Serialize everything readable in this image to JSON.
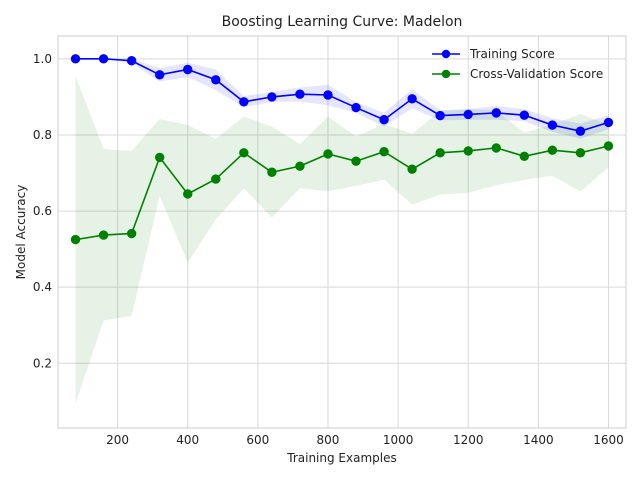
{
  "chart_data": {
    "type": "line",
    "title": "Boosting Learning Curve: Madelon",
    "xlabel": "Training Examples",
    "ylabel": "Model Accuracy",
    "xlim": [
      30,
      1650
    ],
    "ylim": [
      0.03,
      1.06
    ],
    "xticks": [
      200,
      400,
      600,
      800,
      1000,
      1200,
      1400,
      1600
    ],
    "yticks": [
      0.2,
      0.4,
      0.6,
      0.8,
      1.0
    ],
    "grid": true,
    "legend_position": "top-right",
    "x": [
      80,
      160,
      240,
      320,
      400,
      480,
      560,
      640,
      720,
      800,
      880,
      960,
      1040,
      1120,
      1200,
      1280,
      1360,
      1440,
      1520,
      1600
    ],
    "series": [
      {
        "name": "Training Score",
        "color": "#0000ff",
        "values": [
          1.0,
          1.0,
          0.995,
          0.958,
          0.972,
          0.945,
          0.887,
          0.9,
          0.907,
          0.905,
          0.872,
          0.84,
          0.895,
          0.851,
          0.854,
          0.858,
          0.852,
          0.826,
          0.81,
          0.833
        ],
        "band_lower": [
          1.0,
          1.0,
          0.99,
          0.94,
          0.952,
          0.918,
          0.872,
          0.887,
          0.888,
          0.878,
          0.858,
          0.822,
          0.87,
          0.838,
          0.84,
          0.84,
          0.836,
          0.808,
          0.79,
          0.815
        ],
        "band_upper": [
          1.0,
          1.0,
          1.0,
          0.975,
          0.99,
          0.972,
          0.902,
          0.913,
          0.925,
          0.932,
          0.886,
          0.858,
          0.92,
          0.865,
          0.868,
          0.876,
          0.868,
          0.844,
          0.83,
          0.851
        ],
        "band_color": "#0000ff"
      },
      {
        "name": "Cross-Validation Score",
        "color": "#008000",
        "values": [
          0.525,
          0.537,
          0.541,
          0.741,
          0.645,
          0.684,
          0.753,
          0.702,
          0.718,
          0.75,
          0.731,
          0.756,
          0.71,
          0.753,
          0.758,
          0.766,
          0.744,
          0.76,
          0.753,
          0.771
        ],
        "band_lower": [
          0.095,
          0.312,
          0.325,
          0.64,
          0.465,
          0.578,
          0.66,
          0.583,
          0.66,
          0.652,
          0.666,
          0.683,
          0.617,
          0.643,
          0.648,
          0.668,
          0.682,
          0.693,
          0.651,
          0.715
        ],
        "band_upper": [
          0.955,
          0.763,
          0.758,
          0.842,
          0.826,
          0.79,
          0.848,
          0.822,
          0.776,
          0.848,
          0.796,
          0.829,
          0.803,
          0.863,
          0.868,
          0.864,
          0.806,
          0.827,
          0.855,
          0.827
        ],
        "band_color": "#008000"
      }
    ]
  }
}
